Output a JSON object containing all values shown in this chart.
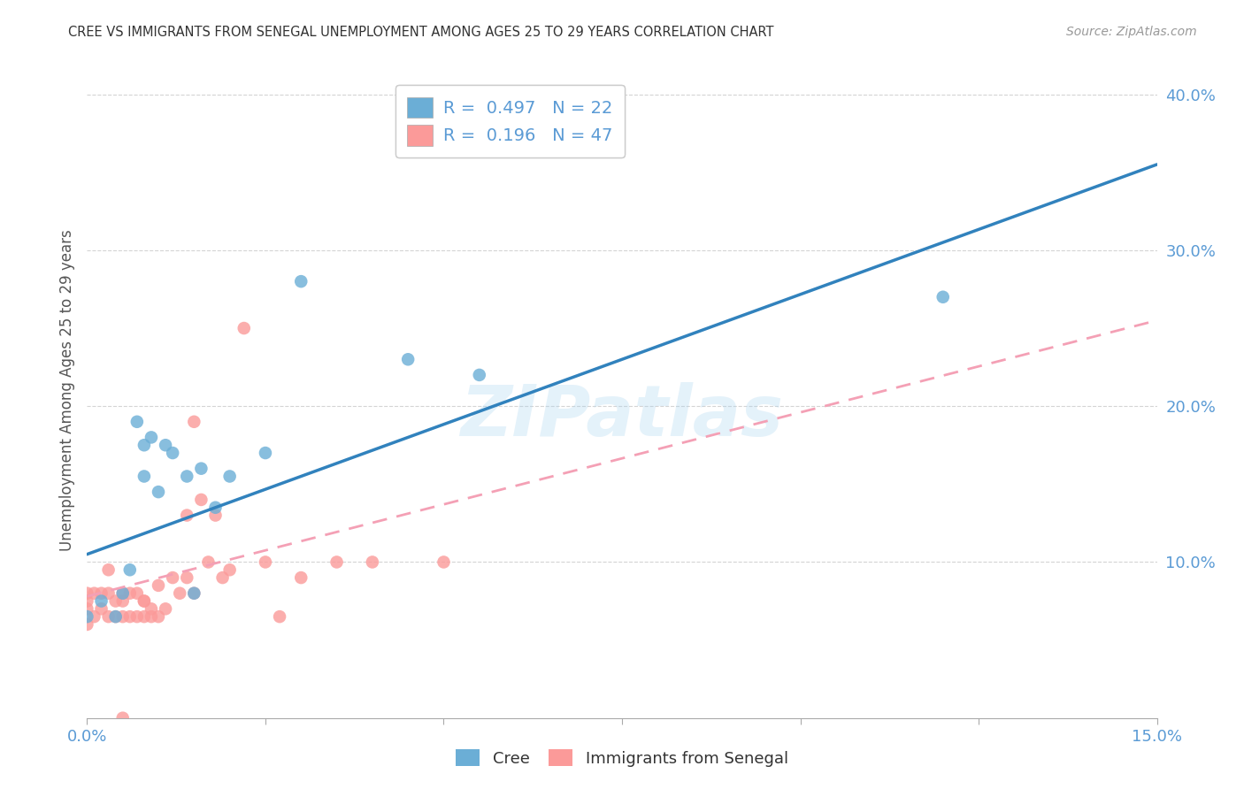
{
  "title": "CREE VS IMMIGRANTS FROM SENEGAL UNEMPLOYMENT AMONG AGES 25 TO 29 YEARS CORRELATION CHART",
  "source": "Source: ZipAtlas.com",
  "ylabel": "Unemployment Among Ages 25 to 29 years",
  "xlim": [
    0.0,
    0.15
  ],
  "ylim": [
    0.0,
    0.42
  ],
  "xticks": [
    0.0,
    0.025,
    0.05,
    0.075,
    0.1,
    0.125,
    0.15
  ],
  "ytick_positions": [
    0.1,
    0.2,
    0.3,
    0.4
  ],
  "ytick_labels": [
    "10.0%",
    "20.0%",
    "30.0%",
    "40.0%"
  ],
  "xtick_labels": [
    "0.0%",
    "",
    "",
    "",
    "",
    "",
    "15.0%"
  ],
  "legend_entries": [
    {
      "label": "R =  0.497   N = 22",
      "color": "#6baed6"
    },
    {
      "label": "R =  0.196   N = 47",
      "color": "#fb9a99"
    }
  ],
  "cree_scatter_x": [
    0.0,
    0.002,
    0.004,
    0.005,
    0.006,
    0.007,
    0.008,
    0.008,
    0.009,
    0.01,
    0.011,
    0.012,
    0.014,
    0.015,
    0.016,
    0.018,
    0.02,
    0.025,
    0.03,
    0.045,
    0.055,
    0.12
  ],
  "cree_scatter_y": [
    0.065,
    0.075,
    0.065,
    0.08,
    0.095,
    0.19,
    0.175,
    0.155,
    0.18,
    0.145,
    0.175,
    0.17,
    0.155,
    0.08,
    0.16,
    0.135,
    0.155,
    0.17,
    0.28,
    0.23,
    0.22,
    0.27
  ],
  "senegal_scatter_x": [
    0.0,
    0.0,
    0.0,
    0.0,
    0.001,
    0.001,
    0.002,
    0.002,
    0.003,
    0.003,
    0.004,
    0.004,
    0.005,
    0.005,
    0.005,
    0.006,
    0.006,
    0.007,
    0.007,
    0.008,
    0.008,
    0.009,
    0.009,
    0.01,
    0.01,
    0.011,
    0.012,
    0.013,
    0.014,
    0.014,
    0.015,
    0.015,
    0.016,
    0.017,
    0.018,
    0.019,
    0.02,
    0.022,
    0.025,
    0.027,
    0.03,
    0.035,
    0.04,
    0.05,
    0.008,
    0.003,
    0.005
  ],
  "senegal_scatter_y": [
    0.07,
    0.075,
    0.08,
    0.06,
    0.065,
    0.08,
    0.07,
    0.08,
    0.065,
    0.08,
    0.065,
    0.075,
    0.065,
    0.075,
    0.08,
    0.065,
    0.08,
    0.065,
    0.08,
    0.065,
    0.075,
    0.07,
    0.065,
    0.065,
    0.085,
    0.07,
    0.09,
    0.08,
    0.09,
    0.13,
    0.19,
    0.08,
    0.14,
    0.1,
    0.13,
    0.09,
    0.095,
    0.25,
    0.1,
    0.065,
    0.09,
    0.1,
    0.1,
    0.1,
    0.075,
    0.095,
    0.0
  ],
  "cree_color": "#6baed6",
  "senegal_color": "#fb9a99",
  "cree_line_x0": 0.0,
  "cree_line_y0": 0.105,
  "cree_line_x1": 0.15,
  "cree_line_y1": 0.355,
  "senegal_line_x0": 0.0,
  "senegal_line_y0": 0.078,
  "senegal_line_x1": 0.15,
  "senegal_line_y1": 0.255,
  "cree_line_color": "#3182bd",
  "senegal_line_color": "#f4a0b5",
  "watermark_text": "ZIPatlas",
  "background_color": "#ffffff",
  "grid_color": "#d0d0d0"
}
